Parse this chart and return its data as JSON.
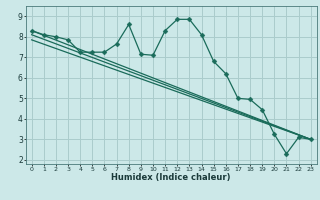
{
  "title": "",
  "xlabel": "Humidex (Indice chaleur)",
  "bg_color": "#cce8e8",
  "grid_color": "#aacccc",
  "line_color": "#1a6b5a",
  "xlim": [
    -0.5,
    23.5
  ],
  "ylim": [
    1.8,
    9.5
  ],
  "yticks": [
    2,
    3,
    4,
    5,
    6,
    7,
    8,
    9
  ],
  "xticks": [
    0,
    1,
    2,
    3,
    4,
    5,
    6,
    7,
    8,
    9,
    10,
    11,
    12,
    13,
    14,
    15,
    16,
    17,
    18,
    19,
    20,
    21,
    22,
    23
  ],
  "series1_x": [
    0,
    1,
    2,
    3,
    4,
    5,
    6,
    7,
    8,
    9,
    10,
    11,
    12,
    13,
    14,
    15,
    16,
    17,
    18,
    19,
    20,
    21,
    22,
    23
  ],
  "series1_y": [
    8.3,
    8.1,
    8.0,
    7.85,
    7.25,
    7.25,
    7.25,
    7.65,
    8.6,
    7.15,
    7.1,
    8.3,
    8.85,
    8.85,
    8.1,
    6.8,
    6.2,
    5.0,
    4.95,
    4.45,
    3.25,
    2.3,
    3.1,
    3.0
  ],
  "series2_x": [
    0,
    23
  ],
  "series2_y": [
    8.3,
    3.0
  ],
  "series3_x": [
    0,
    23
  ],
  "series3_y": [
    8.1,
    3.0
  ],
  "series4_x": [
    0,
    23
  ],
  "series4_y": [
    7.85,
    3.0
  ]
}
